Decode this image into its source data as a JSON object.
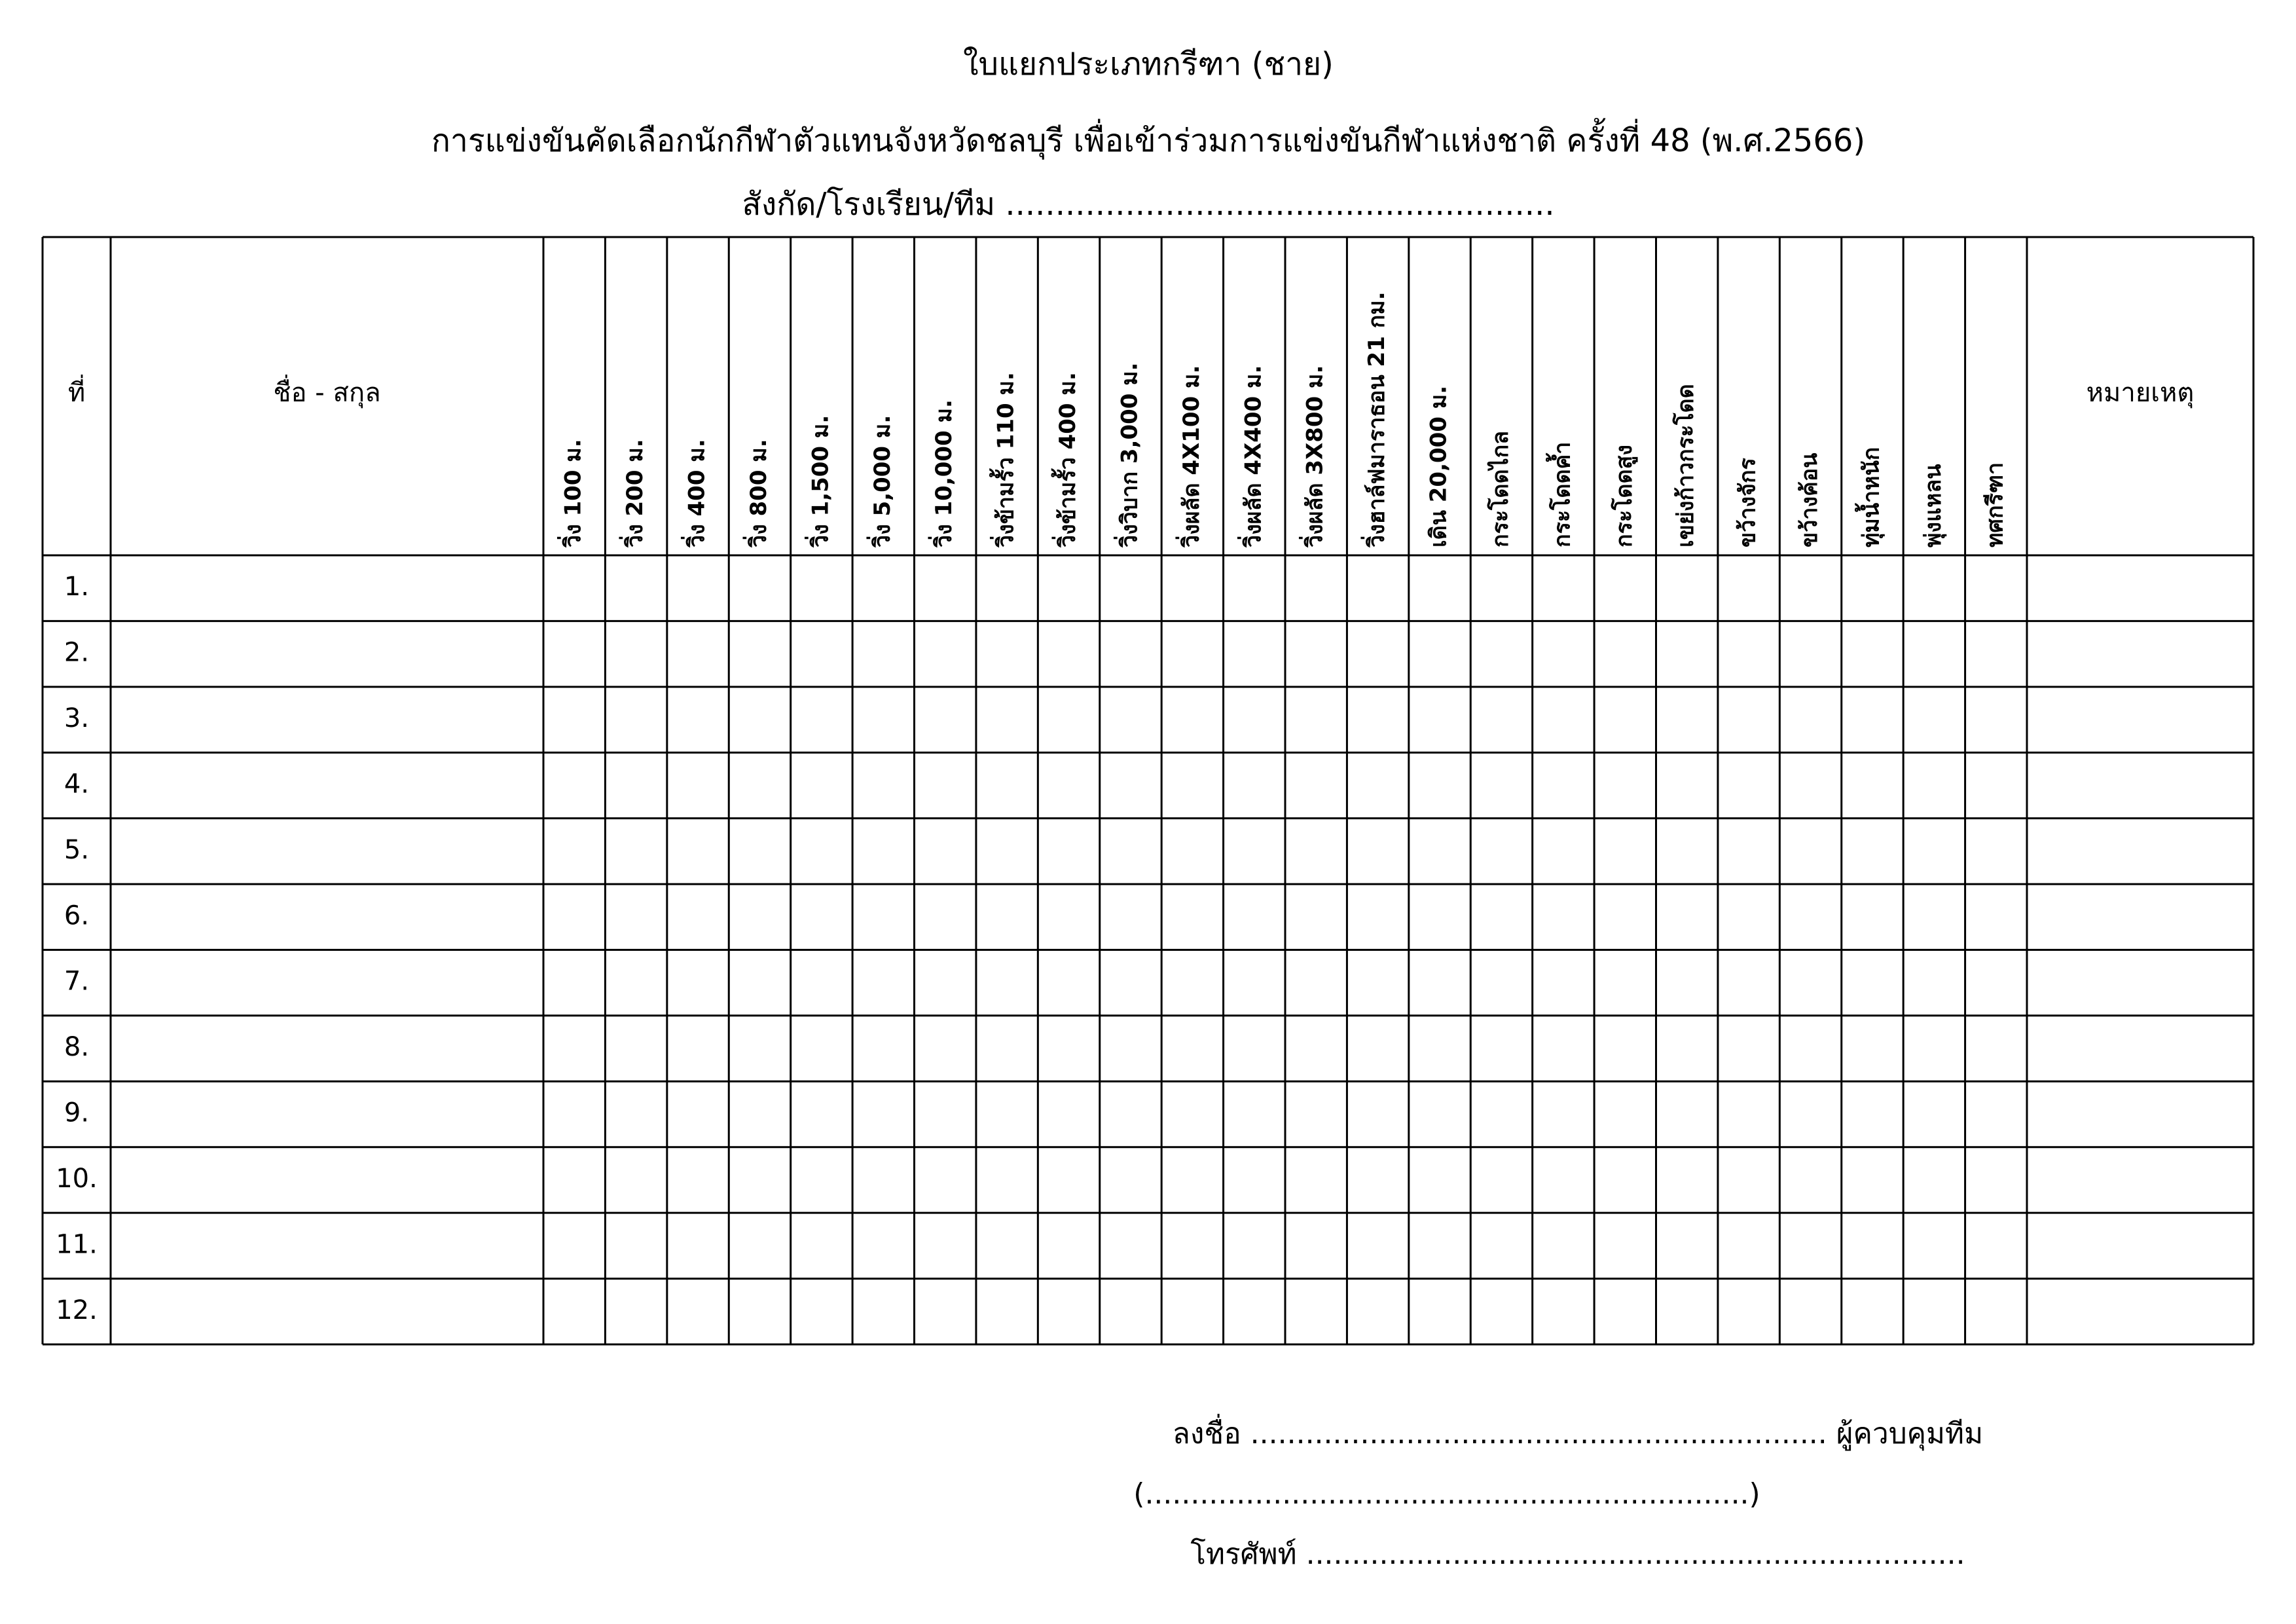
{
  "header": {
    "title": "ใบแยกประเภทกรีฑา (ชาย)",
    "subtitle": "การแข่งขันคัดเลือกนักกีฬาตัวแทนจังหวัดชลบุรี เพื่อเข้าร่วมการแข่งขันกีฬาแห่งชาติ ครั้งที่ 48 (พ.ศ.2566)",
    "affiliation": "สังกัด/โรงเรียน/ทีม ......................................................."
  },
  "table": {
    "number_header": "ที่",
    "name_header": "ชื่อ - สกุล",
    "events": [
      "วิ่ง 100 ม.",
      "วิ่ง 200 ม.",
      "วิ่ง 400 ม.",
      "วิ่ง 800 ม.",
      "วิ่ง 1,500 ม.",
      "วิ่ง 5,000 ม.",
      "วิ่ง 10,000 ม.",
      "วิ่งข้ามรั้ว 110 ม.",
      "วิ่งข้ามรั้ว 400 ม.",
      "วิ่งวิบาก 3,000 ม.",
      "วิ่งผลัด 4X100 ม.",
      "วิ่งผลัด 4X400 ม.",
      "วิ่งผลัด 3X800 ม.",
      "วิ่งฮาล์ฟมาราธอน 21 กม.",
      "เดิน 20,000 ม.",
      "กระโดดไกล",
      "กระโดดค้ำ",
      "กระโดดสูง",
      "เขย่งก้าวกระโดด",
      "ขว้างจักร",
      "ขว้างค้อน",
      "ทุ่มน้ำหนัก",
      "พุ่งแหลน",
      "ทศกรีฑา"
    ],
    "remark_header": "หมายเหตุ",
    "rows": [
      "1.",
      "2.",
      "3.",
      "4.",
      "5.",
      "6.",
      "7.",
      "8.",
      "9.",
      "10.",
      "11.",
      "12."
    ]
  },
  "signature": {
    "sign": "ลงชื่อ ............................................................... ผู้ควบคุมทีม",
    "name": "(..................................................................)",
    "phone": "โทรศัพท์ ........................................................................"
  }
}
